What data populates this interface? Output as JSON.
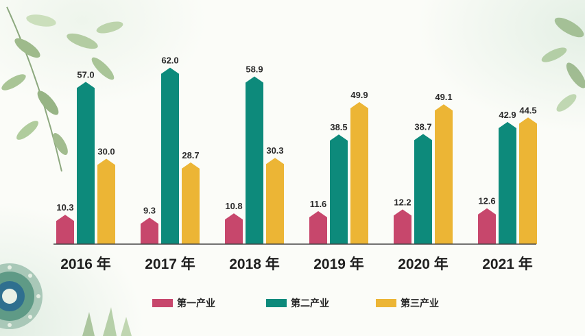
{
  "chart_data": {
    "type": "bar",
    "categories": [
      "2016 年",
      "2017 年",
      "2018 年",
      "2019 年",
      "2020 年",
      "2021 年"
    ],
    "series": [
      {
        "name": "第一产业",
        "values": [
          10.3,
          9.3,
          10.8,
          11.6,
          12.2,
          12.6
        ]
      },
      {
        "name": "第二产业",
        "values": [
          57.0,
          62.0,
          58.9,
          38.5,
          38.7,
          42.9
        ]
      },
      {
        "name": "第三产业",
        "values": [
          30.0,
          28.7,
          30.3,
          49.9,
          49.1,
          44.5
        ]
      }
    ],
    "title": "",
    "xlabel": "",
    "ylabel": "",
    "ylim": [
      0,
      66
    ],
    "legend_position": "bottom",
    "grid": false,
    "data_labels": true
  },
  "colors": {
    "primary_industry": "#c7476c",
    "secondary_industry": "#0d8a7b",
    "tertiary_industry": "#ecb535",
    "baseline": "#444444"
  }
}
